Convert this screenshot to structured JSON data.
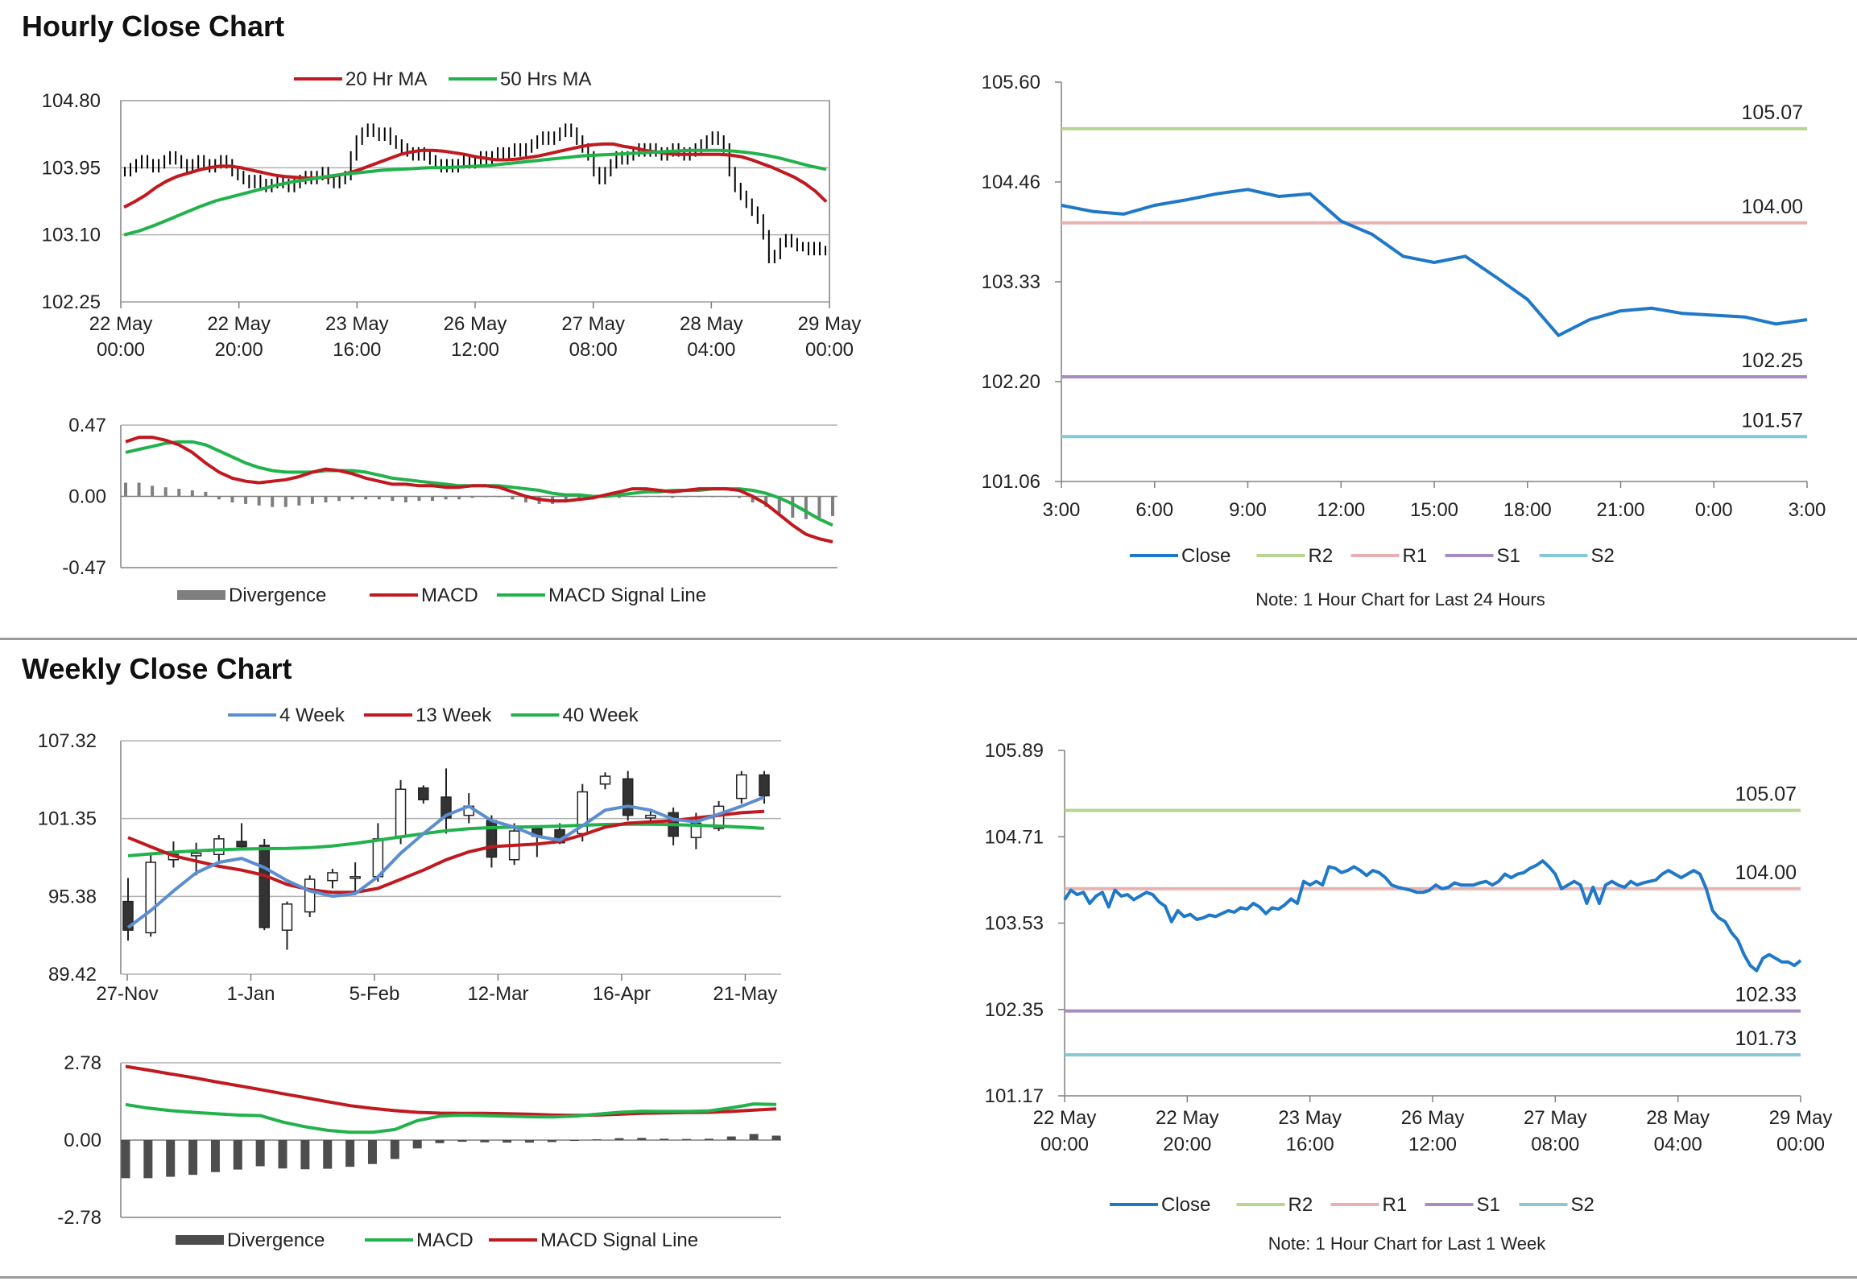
{
  "sections": {
    "hourly_title": "Hourly Close Chart",
    "weekly_title": "Weekly Close Chart"
  },
  "chart_data": [
    {
      "id": "hourly_price",
      "type": "candlestick",
      "yticks": [
        "104.80",
        "103.95",
        "103.10",
        "102.25"
      ],
      "ylim": [
        102.25,
        104.8
      ],
      "xticks": [
        [
          "22 May",
          "00:00"
        ],
        [
          "22 May",
          "20:00"
        ],
        [
          "23 May",
          "16:00"
        ],
        [
          "26 May",
          "12:00"
        ],
        [
          "27 May",
          "08:00"
        ],
        [
          "28 May",
          "04:00"
        ],
        [
          "29 May",
          "00:00"
        ]
      ],
      "legend": [
        "20 Hr MA",
        "50 Hrs MA"
      ],
      "colors": {
        "ma20": "#c0191f",
        "ma50": "#22b24c",
        "candle": "#000000"
      },
      "n_bars": 150,
      "close": [
        103.9,
        103.95,
        104.0,
        104.05,
        104.0,
        103.95,
        104.0,
        104.05,
        104.1,
        104.05,
        104.0,
        103.95,
        104.0,
        104.05,
        104.0,
        103.95,
        104.0,
        104.05,
        104.0,
        103.9,
        103.85,
        103.8,
        103.75,
        103.8,
        103.75,
        103.7,
        103.75,
        103.8,
        103.75,
        103.7,
        103.75,
        103.8,
        103.85,
        103.8,
        103.85,
        103.9,
        103.8,
        103.75,
        103.8,
        103.85,
        104.1,
        104.3,
        104.4,
        104.45,
        104.4,
        104.35,
        104.4,
        104.3,
        104.25,
        104.2,
        104.15,
        104.1,
        104.15,
        104.1,
        104.05,
        104.0,
        103.95,
        104.0,
        103.95,
        104.0,
        104.05,
        104.0,
        104.05,
        104.1,
        104.05,
        104.1,
        104.15,
        104.1,
        104.15,
        104.2,
        104.15,
        104.2,
        104.25,
        104.3,
        104.35,
        104.3,
        104.35,
        104.4,
        104.45,
        104.4,
        104.3,
        104.2,
        104.1,
        103.9,
        103.8,
        103.9,
        104.0,
        104.1,
        104.05,
        104.1,
        104.15,
        104.2,
        104.15,
        104.2,
        104.15,
        104.1,
        104.15,
        104.2,
        104.15,
        104.1,
        104.15,
        104.2,
        104.25,
        104.3,
        104.35,
        104.3,
        104.2,
        103.9,
        103.7,
        103.6,
        103.5,
        103.4,
        103.3,
        103.1,
        102.8,
        102.85,
        103.0,
        103.05,
        103.0,
        102.95,
        102.95,
        102.9,
        102.95,
        102.9,
        102.9
      ],
      "ma20": [
        103.45,
        103.52,
        103.6,
        103.7,
        103.78,
        103.84,
        103.88,
        103.92,
        103.95,
        103.97,
        103.97,
        103.95,
        103.92,
        103.89,
        103.86,
        103.84,
        103.83,
        103.82,
        103.82,
        103.83,
        103.85,
        103.88,
        103.92,
        103.97,
        104.02,
        104.07,
        104.12,
        104.15,
        104.17,
        104.17,
        104.16,
        104.14,
        104.12,
        104.09,
        104.07,
        104.05,
        104.05,
        104.06,
        104.08,
        104.1,
        104.13,
        104.16,
        104.19,
        104.22,
        104.24,
        104.25,
        104.25,
        104.22,
        104.2,
        104.17,
        104.15,
        104.13,
        104.12,
        104.12,
        104.12,
        104.12,
        104.12,
        104.11,
        104.09,
        104.05,
        104.0,
        103.95,
        103.89,
        103.83,
        103.75,
        103.65,
        103.52
      ],
      "ma50": [
        103.1,
        103.15,
        103.22,
        103.3,
        103.38,
        103.46,
        103.53,
        103.58,
        103.63,
        103.68,
        103.73,
        103.77,
        103.8,
        103.83,
        103.86,
        103.88,
        103.9,
        103.92,
        103.93,
        103.94,
        103.95,
        103.95,
        103.96,
        103.97,
        103.98,
        104.0,
        104.02,
        104.04,
        104.06,
        104.08,
        104.1,
        104.11,
        104.12,
        104.13,
        104.14,
        104.15,
        104.16,
        104.17,
        104.17,
        104.17,
        104.16,
        104.14,
        104.11,
        104.07,
        104.02,
        103.97,
        103.93
      ]
    },
    {
      "id": "hourly_macd",
      "type": "line",
      "yticks": [
        "0.47",
        "0.00",
        "-0.47"
      ],
      "ylim": [
        -0.47,
        0.47
      ],
      "legend": [
        "Divergence",
        "MACD",
        "MACD Signal Line"
      ],
      "colors": {
        "divergence": "#7f7f7f",
        "macd": "#c0191f",
        "signal": "#22b24c"
      },
      "macd": [
        0.36,
        0.39,
        0.39,
        0.37,
        0.34,
        0.29,
        0.22,
        0.16,
        0.12,
        0.1,
        0.09,
        0.1,
        0.11,
        0.13,
        0.16,
        0.18,
        0.17,
        0.15,
        0.12,
        0.1,
        0.08,
        0.08,
        0.07,
        0.07,
        0.06,
        0.06,
        0.07,
        0.07,
        0.06,
        0.03,
        0.0,
        -0.02,
        -0.03,
        -0.03,
        -0.02,
        -0.01,
        0.01,
        0.03,
        0.05,
        0.05,
        0.04,
        0.03,
        0.04,
        0.05,
        0.05,
        0.05,
        0.04,
        0.0,
        -0.05,
        -0.12,
        -0.19,
        -0.25,
        -0.28,
        -0.3
      ],
      "signal": [
        0.29,
        0.31,
        0.33,
        0.35,
        0.36,
        0.36,
        0.34,
        0.3,
        0.26,
        0.22,
        0.19,
        0.17,
        0.16,
        0.16,
        0.16,
        0.17,
        0.17,
        0.17,
        0.16,
        0.14,
        0.12,
        0.11,
        0.1,
        0.09,
        0.08,
        0.07,
        0.07,
        0.07,
        0.07,
        0.06,
        0.05,
        0.04,
        0.02,
        0.01,
        0.01,
        0.0,
        0.0,
        0.01,
        0.02,
        0.03,
        0.03,
        0.04,
        0.04,
        0.04,
        0.05,
        0.05,
        0.05,
        0.04,
        0.02,
        -0.01,
        -0.05,
        -0.1,
        -0.15,
        -0.19
      ],
      "divergence": [
        0.09,
        0.09,
        0.07,
        0.06,
        0.05,
        0.04,
        0.03,
        -0.02,
        -0.04,
        -0.05,
        -0.06,
        -0.07,
        -0.07,
        -0.06,
        -0.05,
        -0.04,
        -0.03,
        -0.02,
        -0.02,
        -0.02,
        -0.03,
        -0.04,
        -0.03,
        -0.03,
        -0.02,
        -0.02,
        -0.01,
        0.0,
        0.0,
        -0.02,
        -0.04,
        -0.05,
        -0.05,
        -0.04,
        -0.03,
        -0.02,
        -0.01,
        -0.01,
        0.0,
        0.0,
        0.0,
        -0.01,
        0.0,
        0.0,
        0.0,
        0.0,
        -0.01,
        -0.04,
        -0.07,
        -0.11,
        -0.14,
        -0.15,
        -0.14,
        -0.13
      ]
    },
    {
      "id": "hourly_24h",
      "type": "line",
      "yticks": [
        "105.60",
        "104.46",
        "103.33",
        "102.20",
        "101.06"
      ],
      "ylim": [
        101.06,
        105.6
      ],
      "xticks": [
        "3:00",
        "6:00",
        "9:00",
        "12:00",
        "15:00",
        "18:00",
        "21:00",
        "0:00",
        "3:00"
      ],
      "x": [
        0,
        1,
        2,
        3,
        4,
        5,
        6,
        7,
        8,
        9,
        10,
        11,
        12,
        13,
        14,
        15,
        16,
        17,
        18,
        19,
        20,
        21,
        22,
        23,
        24
      ],
      "close": [
        104.2,
        104.13,
        104.1,
        104.2,
        104.26,
        104.33,
        104.38,
        104.3,
        104.33,
        104.02,
        103.87,
        103.62,
        103.55,
        103.62,
        103.38,
        103.13,
        102.72,
        102.9,
        103.0,
        103.03,
        102.97,
        102.95,
        102.93,
        102.85,
        102.9
      ],
      "levels": [
        {
          "name": "R2",
          "value": "105.07",
          "color": "#b6d591"
        },
        {
          "name": "R1",
          "value": "104.00",
          "color": "#e8b1b1"
        },
        {
          "name": "S1",
          "value": "102.25",
          "color": "#a58cc3"
        },
        {
          "name": "S2",
          "value": "101.57",
          "color": "#86c8d8"
        }
      ],
      "close_color": "#1f78c8",
      "legend": [
        "Close",
        "R2",
        "R1",
        "S1",
        "S2"
      ],
      "note": "Note: 1 Hour Chart for Last 24 Hours"
    },
    {
      "id": "weekly_price",
      "type": "candlestick",
      "yticks": [
        "107.32",
        "101.35",
        "95.38",
        "89.42"
      ],
      "ylim": [
        89.42,
        107.32
      ],
      "xticks": [
        "27-Nov",
        "1-Jan",
        "5-Feb",
        "12-Mar",
        "16-Apr",
        "21-May"
      ],
      "legend": [
        "4 Week",
        "13 Week",
        "40 Week"
      ],
      "colors": {
        "w4": "#5a8ed0",
        "w13": "#c0191f",
        "w40": "#22b24c"
      },
      "candles": [
        {
          "o": 95.0,
          "h": 96.8,
          "l": 92.0,
          "c": 92.8
        },
        {
          "o": 92.6,
          "h": 98.6,
          "l": 92.3,
          "c": 98.0
        },
        {
          "o": 98.2,
          "h": 99.6,
          "l": 97.6,
          "c": 98.6
        },
        {
          "o": 98.5,
          "h": 99.5,
          "l": 97.0,
          "c": 98.7
        },
        {
          "o": 98.6,
          "h": 100.1,
          "l": 98.0,
          "c": 99.8
        },
        {
          "o": 99.6,
          "h": 101.0,
          "l": 99.0,
          "c": 99.2
        },
        {
          "o": 99.3,
          "h": 99.8,
          "l": 92.8,
          "c": 93.0
        },
        {
          "o": 92.8,
          "h": 95.0,
          "l": 91.3,
          "c": 94.8
        },
        {
          "o": 94.2,
          "h": 97.0,
          "l": 93.8,
          "c": 96.7
        },
        {
          "o": 96.6,
          "h": 97.5,
          "l": 96.0,
          "c": 97.2
        },
        {
          "o": 96.8,
          "h": 98.0,
          "l": 95.8,
          "c": 96.9
        },
        {
          "o": 96.9,
          "h": 101.0,
          "l": 96.5,
          "c": 99.8
        },
        {
          "o": 100.0,
          "h": 104.3,
          "l": 99.4,
          "c": 103.6
        },
        {
          "o": 103.7,
          "h": 103.9,
          "l": 102.5,
          "c": 102.8
        },
        {
          "o": 103.0,
          "h": 105.2,
          "l": 100.2,
          "c": 101.4
        },
        {
          "o": 101.6,
          "h": 103.3,
          "l": 101.0,
          "c": 102.3
        },
        {
          "o": 101.2,
          "h": 101.6,
          "l": 97.6,
          "c": 98.4
        },
        {
          "o": 98.2,
          "h": 101.0,
          "l": 97.8,
          "c": 100.4
        },
        {
          "o": 100.6,
          "h": 100.8,
          "l": 98.4,
          "c": 100.0
        },
        {
          "o": 100.5,
          "h": 101.0,
          "l": 99.4,
          "c": 99.5
        },
        {
          "o": 100.2,
          "h": 104.0,
          "l": 99.6,
          "c": 103.4
        },
        {
          "o": 104.0,
          "h": 104.9,
          "l": 103.6,
          "c": 104.6
        },
        {
          "o": 104.4,
          "h": 105.0,
          "l": 101.2,
          "c": 101.6
        },
        {
          "o": 101.4,
          "h": 102.0,
          "l": 100.8,
          "c": 101.6
        },
        {
          "o": 101.8,
          "h": 102.2,
          "l": 99.3,
          "c": 100.0
        },
        {
          "o": 99.9,
          "h": 101.8,
          "l": 99.0,
          "c": 101.0
        },
        {
          "o": 100.6,
          "h": 102.7,
          "l": 100.4,
          "c": 102.3
        },
        {
          "o": 102.9,
          "h": 105.0,
          "l": 102.5,
          "c": 104.7
        },
        {
          "o": 104.7,
          "h": 105.0,
          "l": 102.5,
          "c": 103.1
        }
      ],
      "w4": [
        93.0,
        94.3,
        95.8,
        97.2,
        98.0,
        98.3,
        97.6,
        96.6,
        95.8,
        95.4,
        95.6,
        96.9,
        98.7,
        100.2,
        101.6,
        102.3,
        101.2,
        100.7,
        100.0,
        99.7,
        100.8,
        102.0,
        102.3,
        102.0,
        101.3,
        101.1,
        101.7,
        102.3,
        103.0
      ],
      "w13": [
        99.9,
        99.2,
        98.5,
        98.1,
        97.7,
        97.4,
        97.0,
        96.3,
        95.9,
        95.7,
        95.7,
        96.0,
        96.7,
        97.4,
        98.2,
        98.8,
        99.2,
        99.3,
        99.4,
        99.6,
        100.1,
        100.7,
        101.0,
        101.1,
        101.2,
        101.4,
        101.6,
        101.8,
        101.9
      ],
      "w40": [
        98.5,
        98.65,
        98.78,
        98.88,
        98.96,
        99.02,
        99.05,
        99.06,
        99.12,
        99.25,
        99.45,
        99.7,
        99.95,
        100.2,
        100.42,
        100.58,
        100.66,
        100.7,
        100.73,
        100.78,
        100.84,
        100.9,
        100.92,
        100.91,
        100.88,
        100.84,
        100.78,
        100.7,
        100.6
      ]
    },
    {
      "id": "weekly_macd",
      "type": "line",
      "yticks": [
        "2.78",
        "0.00",
        "-2.78"
      ],
      "ylim": [
        -2.78,
        2.78
      ],
      "legend": [
        "Divergence",
        "MACD",
        "MACD Signal Line"
      ],
      "colors": {
        "divergence": "#4d4d4d",
        "macd": "#22b24c",
        "signal": "#c0191f"
      },
      "macd": [
        1.28,
        1.15,
        1.06,
        1.0,
        0.95,
        0.9,
        0.88,
        0.65,
        0.48,
        0.35,
        0.28,
        0.28,
        0.38,
        0.7,
        0.86,
        0.9,
        0.88,
        0.86,
        0.84,
        0.83,
        0.86,
        0.93,
        1.0,
        1.04,
        1.03,
        1.03,
        1.05,
        1.16,
        1.3,
        1.28
      ],
      "signal": [
        2.65,
        2.52,
        2.38,
        2.25,
        2.1,
        1.96,
        1.82,
        1.67,
        1.53,
        1.38,
        1.24,
        1.14,
        1.06,
        1.0,
        0.97,
        0.96,
        0.96,
        0.95,
        0.93,
        0.9,
        0.89,
        0.9,
        0.93,
        0.96,
        0.98,
        0.99,
        1.0,
        1.03,
        1.08,
        1.12
      ],
      "divergence": [
        -1.37,
        -1.37,
        -1.32,
        -1.25,
        -1.15,
        -1.06,
        -0.94,
        -1.02,
        -1.05,
        -1.03,
        -0.96,
        -0.86,
        -0.68,
        -0.3,
        -0.11,
        -0.06,
        -0.08,
        -0.09,
        -0.09,
        -0.07,
        -0.03,
        0.03,
        0.07,
        0.08,
        0.05,
        0.04,
        0.05,
        0.13,
        0.22,
        0.16
      ]
    },
    {
      "id": "weekly_1w",
      "type": "line",
      "yticks": [
        "105.89",
        "104.71",
        "103.53",
        "102.35",
        "101.17"
      ],
      "ylim": [
        101.17,
        105.89
      ],
      "xticks": [
        [
          "22 May",
          "00:00"
        ],
        [
          "22 May",
          "20:00"
        ],
        [
          "23 May",
          "16:00"
        ],
        [
          "26 May",
          "12:00"
        ],
        [
          "27 May",
          "08:00"
        ],
        [
          "28 May",
          "04:00"
        ],
        [
          "29 May",
          "00:00"
        ]
      ],
      "close": [
        103.85,
        103.98,
        103.92,
        103.95,
        103.8,
        103.9,
        103.95,
        103.75,
        103.98,
        103.9,
        103.92,
        103.85,
        103.9,
        103.95,
        103.92,
        103.82,
        103.76,
        103.55,
        103.7,
        103.62,
        103.65,
        103.58,
        103.6,
        103.64,
        103.62,
        103.66,
        103.7,
        103.68,
        103.74,
        103.72,
        103.8,
        103.75,
        103.66,
        103.74,
        103.72,
        103.78,
        103.86,
        103.8,
        104.1,
        104.05,
        104.1,
        104.05,
        104.3,
        104.28,
        104.22,
        104.25,
        104.3,
        104.25,
        104.18,
        104.25,
        104.22,
        104.15,
        104.05,
        104.02,
        104.0,
        103.98,
        103.95,
        103.95,
        103.98,
        104.05,
        104.0,
        104.02,
        104.08,
        104.05,
        104.05,
        104.05,
        104.08,
        104.1,
        104.05,
        104.1,
        104.2,
        104.15,
        104.2,
        104.22,
        104.28,
        104.32,
        104.38,
        104.3,
        104.2,
        104.0,
        104.05,
        104.1,
        104.05,
        103.8,
        104.02,
        103.8,
        104.05,
        104.1,
        104.05,
        104.02,
        104.1,
        104.05,
        104.08,
        104.1,
        104.12,
        104.2,
        104.25,
        104.2,
        104.15,
        104.2,
        104.25,
        104.2,
        104.0,
        103.7,
        103.6,
        103.55,
        103.4,
        103.3,
        103.1,
        102.95,
        102.88,
        103.05,
        103.1,
        103.05,
        103.0,
        103.0,
        102.95,
        103.02
      ],
      "levels": [
        {
          "name": "R2",
          "value": "105.07",
          "color": "#b6d591"
        },
        {
          "name": "R1",
          "value": "104.00",
          "color": "#e8b1b1"
        },
        {
          "name": "S1",
          "value": "102.33",
          "color": "#a58cc3"
        },
        {
          "name": "S2",
          "value": "101.73",
          "color": "#86c8d8"
        }
      ],
      "close_color": "#1f78c8",
      "legend": [
        "Close",
        "R2",
        "R1",
        "S1",
        "S2"
      ],
      "note": "Note: 1 Hour Chart for Last 1 Week"
    }
  ]
}
